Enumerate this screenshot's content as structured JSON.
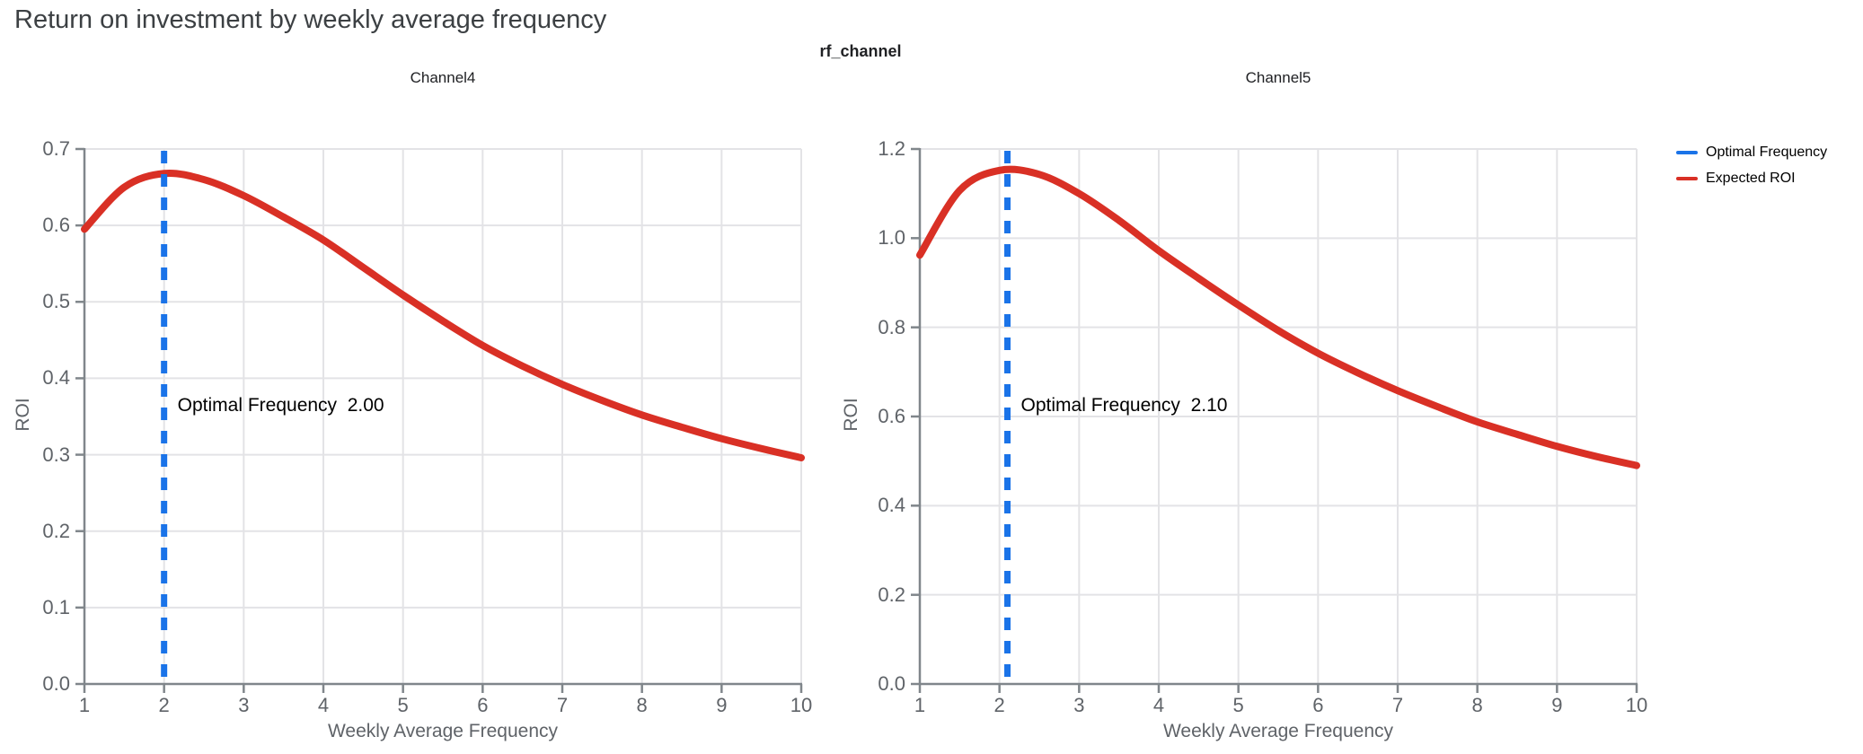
{
  "chart_data": {
    "type": "line",
    "title": "Return on investment by weekly average frequency",
    "facet_label": "rf_channel",
    "xlabel": "Weekly Average Frequency",
    "ylabel": "ROI",
    "xlim": [
      1,
      10
    ],
    "xticks": [
      1,
      2,
      3,
      4,
      5,
      6,
      7,
      8,
      9,
      10
    ],
    "grid": true,
    "legend_position": "top-right",
    "legend": [
      {
        "label": "Optimal Frequency",
        "color": "#1a73e8",
        "style": "dashed"
      },
      {
        "label": "Expected ROI",
        "color": "#d93025",
        "style": "solid"
      }
    ],
    "x": [
      1,
      1.5,
      2,
      2.5,
      3,
      3.5,
      4,
      4.5,
      5,
      5.5,
      6,
      6.5,
      7,
      7.5,
      8,
      8.5,
      9,
      9.5,
      10
    ],
    "subplots": [
      {
        "title": "Channel4",
        "ylabel": "ROI",
        "ylim": [
          0.0,
          0.7
        ],
        "ytick_labels": [
          "0.0",
          "0.1",
          "0.2",
          "0.3",
          "0.4",
          "0.5",
          "0.6",
          "0.7"
        ],
        "roi": [
          0.595,
          0.65,
          0.668,
          0.66,
          0.639,
          0.611,
          0.581,
          0.545,
          0.509,
          0.475,
          0.443,
          0.416,
          0.392,
          0.371,
          0.352,
          0.336,
          0.321,
          0.308,
          0.296
        ],
        "optimal_frequency": 2.0,
        "annotation": "Optimal Frequency  2.00"
      },
      {
        "title": "Channel5",
        "ylabel": "ROI",
        "ylim": [
          0.0,
          1.2
        ],
        "ytick_labels": [
          "0.0",
          "0.2",
          "0.4",
          "0.6",
          "0.8",
          "1.0",
          "1.2"
        ],
        "roi": [
          0.962,
          1.107,
          1.152,
          1.143,
          1.1,
          1.04,
          0.972,
          0.91,
          0.85,
          0.793,
          0.742,
          0.698,
          0.658,
          0.622,
          0.588,
          0.56,
          0.533,
          0.51,
          0.49
        ],
        "optimal_frequency": 2.1,
        "annotation": "Optimal Frequency  2.10"
      }
    ]
  }
}
